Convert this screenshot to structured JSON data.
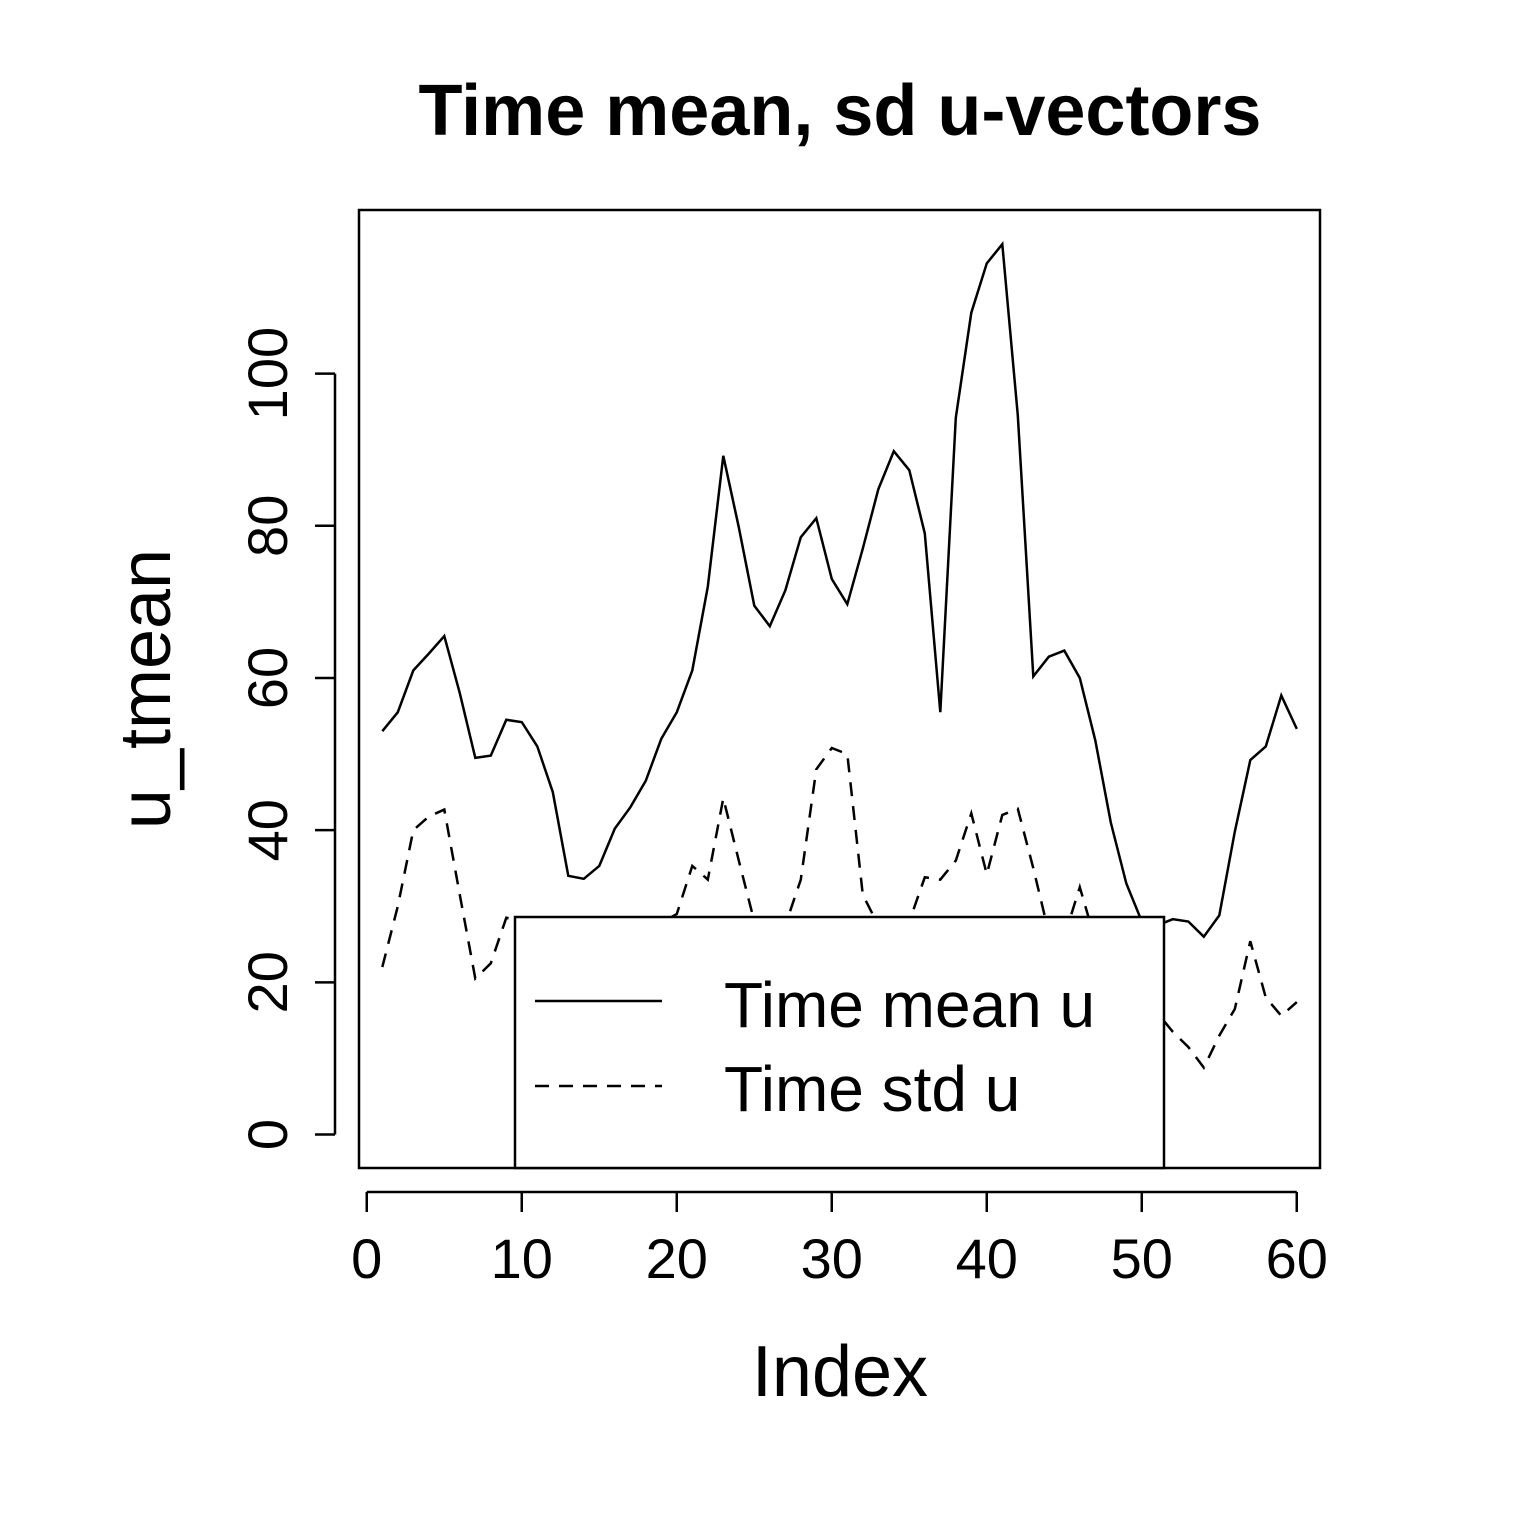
{
  "chart_data": {
    "type": "line",
    "title": "Time mean, sd u-vectors",
    "xlabel": "Index",
    "ylabel": "u_tmean",
    "xlim": [
      -0.5,
      61.5
    ],
    "ylim": [
      -4.4,
      121.5
    ],
    "xticks": [
      0,
      10,
      20,
      30,
      40,
      50,
      60
    ],
    "yticks": [
      0,
      20,
      40,
      60,
      80,
      100
    ],
    "x": [
      1,
      2,
      3,
      4,
      5,
      6,
      7,
      8,
      9,
      10,
      11,
      12,
      13,
      14,
      15,
      16,
      17,
      18,
      19,
      20,
      21,
      22,
      23,
      24,
      25,
      26,
      27,
      28,
      29,
      30,
      31,
      32,
      33,
      34,
      35,
      36,
      37,
      38,
      39,
      40,
      41,
      42,
      43,
      44,
      45,
      46,
      47,
      48,
      49,
      50,
      51,
      52,
      53,
      54,
      55,
      56,
      57,
      58,
      59,
      60
    ],
    "series": [
      {
        "name": "Time mean u",
        "dash": "solid",
        "values": [
          53,
          55.5,
          61,
          63.2,
          65.5,
          58,
          49.5,
          49.8,
          54.5,
          54.2,
          51,
          45,
          34,
          33.6,
          35.3,
          40.2,
          43,
          46.5,
          52,
          55.5,
          61,
          72,
          89.2,
          79.8,
          69.5,
          66.8,
          71.5,
          78.5,
          81,
          73,
          69.7,
          77,
          84.8,
          89.8,
          87.3,
          79,
          55.5,
          94.2,
          108,
          114.5,
          117,
          94.5,
          60.2,
          62.8,
          63.6,
          60,
          51.8,
          41,
          33,
          28,
          27.5,
          28.3,
          28,
          26,
          28.8,
          39.8,
          49.2,
          51,
          57.7,
          53.3
        ]
      },
      {
        "name": "Time std u",
        "dash": "dashed",
        "values": [
          22,
          30,
          40,
          41.8,
          42.7,
          31.5,
          20.5,
          22.5,
          28.5,
          28,
          27,
          26,
          25,
          24,
          24.5,
          25.5,
          26,
          27.5,
          27.8,
          29,
          35.3,
          33.5,
          44.2,
          36,
          28,
          27,
          27.5,
          33.5,
          48,
          50.8,
          50,
          31.5,
          27.5,
          27.5,
          28,
          33.8,
          33.5,
          36,
          42.2,
          34.2,
          42,
          42.8,
          35,
          26.5,
          26,
          32.5,
          25.5,
          22,
          20,
          19,
          16,
          13.5,
          11.5,
          8.8,
          13,
          16.5,
          25.4,
          18,
          15.6,
          17.4
        ]
      }
    ],
    "legend": {
      "position": "bottom-center",
      "entries": [
        "Time mean u",
        "Time std u"
      ]
    },
    "grid": false
  }
}
